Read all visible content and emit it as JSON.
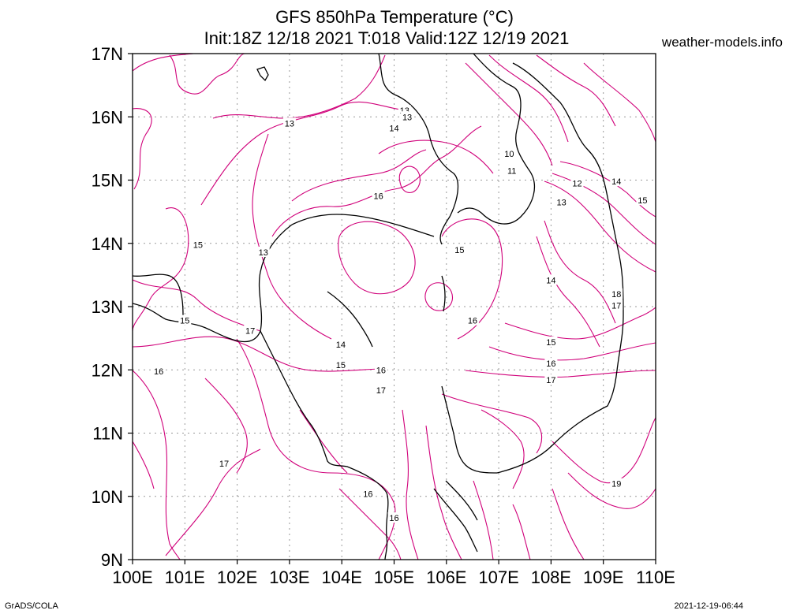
{
  "title": {
    "line1": "GFS 850hPa Temperature (°C)",
    "line2": "Init:18Z 12/18 2021 T:018 Valid:12Z 12/19 2021"
  },
  "site": "weather-models.info",
  "credit": "GrADS/COLA",
  "timestamp": "2021-12-19-06:44",
  "colors": {
    "contour": "#d0007a",
    "coast": "#000000",
    "grid": "#999999"
  },
  "map": {
    "lon_range": [
      100,
      110
    ],
    "lat_range": [
      9,
      17
    ],
    "x_ticks": [
      "100E",
      "101E",
      "102E",
      "103E",
      "104E",
      "105E",
      "106E",
      "107E",
      "108E",
      "109E",
      "110E"
    ],
    "y_ticks": [
      "17N",
      "16N",
      "15N",
      "14N",
      "13N",
      "12N",
      "11N",
      "10N",
      "9N"
    ],
    "contour_labels": [
      {
        "text": "13",
        "lon": 103.0,
        "lat": 15.9
      },
      {
        "text": "13",
        "lon": 105.2,
        "lat": 16.1
      },
      {
        "text": "13",
        "lon": 105.25,
        "lat": 16.0
      },
      {
        "text": "14",
        "lon": 105.0,
        "lat": 15.82
      },
      {
        "text": "10",
        "lon": 107.2,
        "lat": 15.42
      },
      {
        "text": "11",
        "lon": 107.25,
        "lat": 15.15
      },
      {
        "text": "12",
        "lon": 108.5,
        "lat": 14.95
      },
      {
        "text": "14",
        "lon": 109.25,
        "lat": 14.98
      },
      {
        "text": "15",
        "lon": 109.75,
        "lat": 14.68
      },
      {
        "text": "13",
        "lon": 108.2,
        "lat": 14.65
      },
      {
        "text": "16",
        "lon": 104.7,
        "lat": 14.75
      },
      {
        "text": "15",
        "lon": 101.25,
        "lat": 13.98
      },
      {
        "text": "13",
        "lon": 102.5,
        "lat": 13.86
      },
      {
        "text": "15",
        "lon": 106.25,
        "lat": 13.9
      },
      {
        "text": "14",
        "lon": 108.0,
        "lat": 13.42
      },
      {
        "text": "18",
        "lon": 109.25,
        "lat": 13.2
      },
      {
        "text": "17",
        "lon": 109.25,
        "lat": 13.02
      },
      {
        "text": "15",
        "lon": 101.0,
        "lat": 12.78
      },
      {
        "text": "17",
        "lon": 102.25,
        "lat": 12.62
      },
      {
        "text": "16",
        "lon": 106.5,
        "lat": 12.78
      },
      {
        "text": "14",
        "lon": 103.98,
        "lat": 12.4
      },
      {
        "text": "15",
        "lon": 108.0,
        "lat": 12.44
      },
      {
        "text": "15",
        "lon": 103.98,
        "lat": 12.08
      },
      {
        "text": "16",
        "lon": 104.75,
        "lat": 12.0
      },
      {
        "text": "16",
        "lon": 108.0,
        "lat": 12.1
      },
      {
        "text": "16",
        "lon": 100.5,
        "lat": 11.98
      },
      {
        "text": "17",
        "lon": 108.0,
        "lat": 11.84
      },
      {
        "text": "17",
        "lon": 104.75,
        "lat": 11.68
      },
      {
        "text": "17",
        "lon": 101.75,
        "lat": 10.52
      },
      {
        "text": "19",
        "lon": 109.25,
        "lat": 10.2
      },
      {
        "text": "16",
        "lon": 104.5,
        "lat": 10.04
      },
      {
        "text": "16",
        "lon": 105.0,
        "lat": 9.66
      }
    ]
  }
}
